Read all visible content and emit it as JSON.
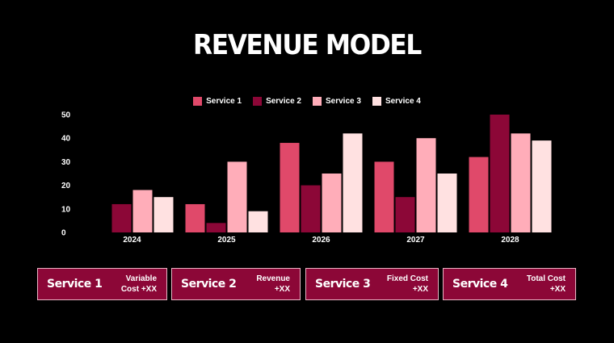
{
  "page": {
    "title": "REVENUE MODEL"
  },
  "colors": {
    "background": "#000000",
    "card_fill": "#8c0737",
    "card_border": "#e8b4c4",
    "service_1": "#e0496a",
    "service_2": "#8c0737",
    "service_3": "#ffadb9",
    "service_4": "#ffe1e1"
  },
  "chart_data": {
    "type": "bar",
    "title": "",
    "xlabel": "",
    "ylabel": "",
    "categories": [
      "2024",
      "2025",
      "2026",
      "2027",
      "2028"
    ],
    "series": [
      {
        "name": "Service 1",
        "values": [
          0,
          12,
          38,
          30,
          32
        ]
      },
      {
        "name": "Service 2",
        "values": [
          12,
          4,
          20,
          15,
          50
        ]
      },
      {
        "name": "Service 3",
        "values": [
          18,
          30,
          25,
          40,
          42
        ]
      },
      {
        "name": "Service 4",
        "values": [
          15,
          9,
          42,
          25,
          39
        ]
      }
    ],
    "ylim": [
      0,
      50
    ],
    "yticks": [
      0,
      10,
      20,
      30,
      40,
      50
    ],
    "grid": false,
    "legend_position": "top-center"
  },
  "cards": [
    {
      "name": "Service 1",
      "note": "Variable Cost +XX"
    },
    {
      "name": "Service 2",
      "note": "Revenue +XX"
    },
    {
      "name": "Service 3",
      "note": "Fixed Cost +XX"
    },
    {
      "name": "Service 4",
      "note": "Total Cost +XX"
    }
  ]
}
